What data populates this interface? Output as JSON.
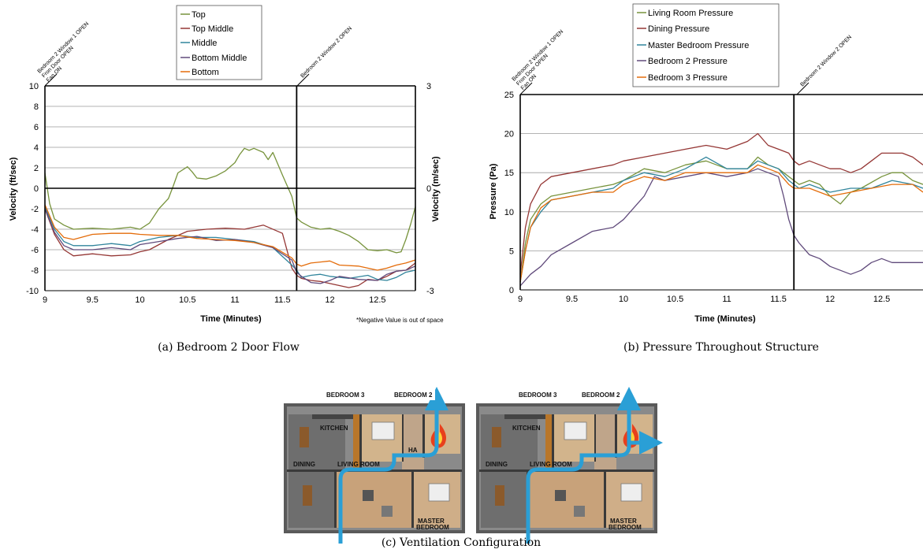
{
  "figure_a": {
    "caption": "(a) Bedroom 2 Door Flow",
    "annotation_left": [
      "Bedroom 2 Window 1 OPEN",
      "Fron Door OPEN",
      "Fan ON"
    ],
    "annotation_right": "Bedroom 2 Window 2 OPEN",
    "footnote": "*Negative Value is out of space"
  },
  "figure_b": {
    "caption": "(b) Pressure Throughout Structure",
    "annotation_left": [
      "Bedroom 2 Window 1 OPEN",
      "Fron Door OPEN",
      "Fan ON"
    ],
    "annotation_right": "Bedroom 2 Window 2 OPEN"
  },
  "figure_c": {
    "caption": "(c) Ventilation Configuration",
    "room_labels": [
      "BEDROOM 3",
      "BEDROOM 2",
      "KITCHEN",
      "DINING",
      "LIVING ROOM",
      "MASTER",
      "BEDROOM",
      "HA"
    ]
  },
  "colors": {
    "top": "#77933c",
    "top_middle": "#953735",
    "middle": "#31859c",
    "bottom_middle": "#604a7b",
    "bottom": "#e46c0a",
    "living": "#77933c",
    "dining": "#953735",
    "master": "#31859c",
    "bed2": "#604a7b",
    "bed3": "#e46c0a",
    "flow_arrow": "#2a9fd6"
  },
  "chart_data": [
    {
      "type": "line",
      "xlabel": "Time (Minutes)",
      "ylabel": "Velocity (ft/sec)",
      "y2label": "Velocity (m/sec)",
      "xlim": [
        9,
        12.9
      ],
      "ylim": [
        -10,
        10
      ],
      "y2lim": [
        -3,
        3
      ],
      "xticks": [
        "9",
        "9.5",
        "10",
        "10.5",
        "11",
        "11.5",
        "12",
        "12.5"
      ],
      "yticks": [
        "10",
        "8",
        "6",
        "4",
        "2",
        "0",
        "-2",
        "-4",
        "-6",
        "-8",
        "-10"
      ],
      "y2ticks": [
        "3",
        "0",
        "-3"
      ],
      "vline_x": 11.65,
      "legend_position": "top",
      "series": [
        {
          "name": "Top",
          "color": "#77933c",
          "x": [
            9,
            9.05,
            9.1,
            9.2,
            9.3,
            9.5,
            9.7,
            9.9,
            10.0,
            10.1,
            10.2,
            10.3,
            10.35,
            10.4,
            10.5,
            10.55,
            10.6,
            10.7,
            10.8,
            10.9,
            11.0,
            11.05,
            11.1,
            11.15,
            11.2,
            11.3,
            11.35,
            11.4,
            11.5,
            11.6,
            11.65,
            11.7,
            11.8,
            11.9,
            12.0,
            12.1,
            12.2,
            12.3,
            12.4,
            12.5,
            12.6,
            12.7,
            12.75,
            12.8,
            12.85,
            12.9
          ],
          "y": [
            1.5,
            -1.5,
            -3.0,
            -3.6,
            -4.0,
            -3.9,
            -4.0,
            -3.8,
            -4.0,
            -3.4,
            -2.0,
            -1.0,
            0.2,
            1.5,
            2.1,
            1.6,
            1.0,
            0.9,
            1.2,
            1.7,
            2.5,
            3.3,
            3.9,
            3.7,
            3.9,
            3.5,
            2.8,
            3.5,
            1.3,
            -0.8,
            -2.9,
            -3.3,
            -3.8,
            -4.0,
            -3.9,
            -4.2,
            -4.6,
            -5.2,
            -6.0,
            -6.1,
            -6.0,
            -6.3,
            -6.2,
            -5.0,
            -3.5,
            -1.8
          ]
        },
        {
          "name": "Top Middle",
          "color": "#953735",
          "x": [
            9,
            9.1,
            9.2,
            9.3,
            9.5,
            9.7,
            9.9,
            10.0,
            10.1,
            10.3,
            10.5,
            10.7,
            10.9,
            11.1,
            11.3,
            11.5,
            11.6,
            11.65,
            11.7,
            11.8,
            11.9,
            12.0,
            12.1,
            12.2,
            12.3,
            12.4,
            12.5,
            12.6,
            12.7,
            12.8,
            12.9
          ],
          "y": [
            -2,
            -4.5,
            -6.0,
            -6.6,
            -6.4,
            -6.6,
            -6.5,
            -6.2,
            -6.0,
            -5.0,
            -4.2,
            -4.0,
            -3.9,
            -4.0,
            -3.6,
            -4.4,
            -7.8,
            -8.5,
            -8.8,
            -9.0,
            -9.1,
            -9.3,
            -9.5,
            -9.7,
            -9.5,
            -8.9,
            -9.0,
            -8.6,
            -8.1,
            -8.0,
            -7.3
          ]
        },
        {
          "name": "Middle",
          "color": "#31859c",
          "x": [
            9,
            9.1,
            9.2,
            9.3,
            9.5,
            9.7,
            9.9,
            10.0,
            10.2,
            10.4,
            10.6,
            10.8,
            11.0,
            11.2,
            11.4,
            11.6,
            11.65,
            11.7,
            11.8,
            11.9,
            12.0,
            12.2,
            12.4,
            12.5,
            12.6,
            12.7,
            12.8,
            12.9
          ],
          "y": [
            -1.8,
            -4.0,
            -5.2,
            -5.6,
            -5.6,
            -5.4,
            -5.6,
            -5.2,
            -4.8,
            -4.6,
            -4.8,
            -4.8,
            -5.0,
            -5.2,
            -5.8,
            -7.5,
            -8.0,
            -8.7,
            -8.5,
            -8.4,
            -8.6,
            -8.8,
            -8.5,
            -8.9,
            -9.0,
            -8.7,
            -8.2,
            -8.0
          ]
        },
        {
          "name": "Bottom Middle",
          "color": "#604a7b",
          "x": [
            9,
            9.1,
            9.2,
            9.3,
            9.5,
            9.7,
            9.9,
            10.0,
            10.2,
            10.4,
            10.6,
            10.8,
            11.0,
            11.2,
            11.4,
            11.6,
            11.65,
            11.7,
            11.8,
            11.9,
            12.0,
            12.1,
            12.3,
            12.5,
            12.6,
            12.7,
            12.8,
            12.9
          ],
          "y": [
            -2.0,
            -4.3,
            -5.6,
            -6.0,
            -6.0,
            -5.8,
            -6.0,
            -5.5,
            -5.2,
            -4.9,
            -4.7,
            -5.1,
            -5.0,
            -5.3,
            -5.8,
            -7.0,
            -8.2,
            -8.6,
            -9.2,
            -9.3,
            -9.0,
            -8.6,
            -8.9,
            -9.0,
            -8.4,
            -8.1,
            -8.0,
            -7.6
          ]
        },
        {
          "name": "Bottom",
          "color": "#e46c0a",
          "x": [
            9,
            9.1,
            9.2,
            9.3,
            9.5,
            9.7,
            9.9,
            10.0,
            10.2,
            10.4,
            10.6,
            10.8,
            11.0,
            11.2,
            11.4,
            11.6,
            11.65,
            11.7,
            11.8,
            11.9,
            12.0,
            12.1,
            12.3,
            12.5,
            12.6,
            12.7,
            12.8,
            12.9
          ],
          "y": [
            -1.6,
            -3.8,
            -4.8,
            -5.0,
            -4.5,
            -4.4,
            -4.4,
            -4.5,
            -4.6,
            -4.6,
            -4.9,
            -5.0,
            -5.1,
            -5.3,
            -5.7,
            -6.8,
            -7.4,
            -7.6,
            -7.3,
            -7.2,
            -7.1,
            -7.5,
            -7.6,
            -8.0,
            -7.8,
            -7.5,
            -7.3,
            -7.0
          ]
        }
      ]
    },
    {
      "type": "line",
      "xlabel": "Time (Minutes)",
      "ylabel": "Pressure (Pa)",
      "xlim": [
        9,
        12.9
      ],
      "ylim": [
        0,
        25
      ],
      "xticks": [
        "9",
        "9.5",
        "10",
        "10.5",
        "11",
        "11.5",
        "12",
        "12.5"
      ],
      "yticks": [
        "25",
        "20",
        "15",
        "10",
        "5",
        "0"
      ],
      "vline_x": 11.65,
      "legend_position": "top",
      "series": [
        {
          "name": "Living Room Pressure",
          "color": "#77933c",
          "x": [
            9,
            9.05,
            9.1,
            9.2,
            9.3,
            9.5,
            9.7,
            9.9,
            10.0,
            10.2,
            10.4,
            10.6,
            10.8,
            11.0,
            11.2,
            11.3,
            11.4,
            11.5,
            11.6,
            11.65,
            11.7,
            11.8,
            11.9,
            12.0,
            12.1,
            12.2,
            12.3,
            12.5,
            12.6,
            12.7,
            12.8,
            12.9
          ],
          "y": [
            1,
            6,
            9,
            11,
            12,
            12.5,
            13,
            13.5,
            14,
            15.5,
            15,
            16,
            16.5,
            15.5,
            15.5,
            17,
            16,
            15.5,
            14.5,
            14,
            13.5,
            14,
            13.5,
            12,
            11,
            12.5,
            13,
            14.5,
            15,
            15,
            14,
            13.5
          ]
        },
        {
          "name": "Dining Pressure",
          "color": "#953735",
          "x": [
            9,
            9.05,
            9.1,
            9.2,
            9.3,
            9.5,
            9.7,
            9.9,
            10.0,
            10.2,
            10.4,
            10.6,
            10.8,
            11.0,
            11.2,
            11.3,
            11.4,
            11.5,
            11.6,
            11.65,
            11.7,
            11.8,
            11.9,
            12.0,
            12.1,
            12.2,
            12.3,
            12.4,
            12.5,
            12.6,
            12.7,
            12.8,
            12.9
          ],
          "y": [
            2,
            8,
            11,
            13.5,
            14.5,
            15,
            15.5,
            16,
            16.5,
            17,
            17.5,
            18,
            18.5,
            18,
            19,
            20,
            18.5,
            18,
            17.5,
            16.5,
            16,
            16.5,
            16,
            15.5,
            15.5,
            15,
            15.5,
            16.5,
            17.5,
            17.5,
            17.5,
            17,
            16
          ]
        },
        {
          "name": "Master Bedroom Pressure",
          "color": "#31859c",
          "x": [
            9,
            9.05,
            9.1,
            9.2,
            9.3,
            9.5,
            9.7,
            9.9,
            10.0,
            10.2,
            10.4,
            10.6,
            10.8,
            11.0,
            11.2,
            11.3,
            11.4,
            11.5,
            11.6,
            11.65,
            11.7,
            11.8,
            11.9,
            12.0,
            12.2,
            12.4,
            12.6,
            12.8,
            12.9
          ],
          "y": [
            1,
            5,
            8,
            10,
            11.5,
            12,
            12.5,
            13,
            14,
            15,
            14.5,
            15.5,
            17,
            15.5,
            15.5,
            16.5,
            16,
            15.5,
            14,
            13.5,
            13,
            13.5,
            13,
            12.5,
            13,
            13,
            14,
            13.5,
            13
          ]
        },
        {
          "name": "Bedroom 2 Pressure",
          "color": "#604a7b",
          "x": [
            9,
            9.1,
            9.2,
            9.3,
            9.5,
            9.7,
            9.9,
            10.0,
            10.2,
            10.3,
            10.4,
            10.6,
            10.8,
            11.0,
            11.2,
            11.3,
            11.4,
            11.5,
            11.55,
            11.6,
            11.65,
            11.7,
            11.8,
            11.9,
            12.0,
            12.1,
            12.2,
            12.3,
            12.4,
            12.5,
            12.6,
            12.7,
            12.8,
            12.9
          ],
          "y": [
            0.5,
            2,
            3,
            4.5,
            6,
            7.5,
            8,
            9,
            12,
            14.5,
            14,
            14.5,
            15,
            14.5,
            15,
            15.5,
            15,
            14.5,
            12,
            9,
            7,
            6,
            4.5,
            4,
            3,
            2.5,
            2,
            2.5,
            3.5,
            4,
            3.5,
            3.5,
            3.5,
            3.5
          ]
        },
        {
          "name": "Bedroom 3 Pressure",
          "color": "#e46c0a",
          "x": [
            9,
            9.05,
            9.1,
            9.2,
            9.3,
            9.5,
            9.7,
            9.9,
            10.0,
            10.2,
            10.4,
            10.6,
            10.8,
            11.0,
            11.2,
            11.3,
            11.4,
            11.5,
            11.6,
            11.65,
            11.7,
            11.8,
            11.9,
            12.0,
            12.2,
            12.4,
            12.6,
            12.8,
            12.9
          ],
          "y": [
            1,
            5,
            8,
            10.5,
            11.5,
            12,
            12.5,
            12.5,
            13.5,
            14.5,
            14,
            15,
            15,
            15,
            15,
            16,
            15.5,
            15,
            13.5,
            13,
            13,
            13,
            12.5,
            12,
            12.5,
            13,
            13.5,
            13.5,
            12.5
          ]
        }
      ]
    }
  ]
}
